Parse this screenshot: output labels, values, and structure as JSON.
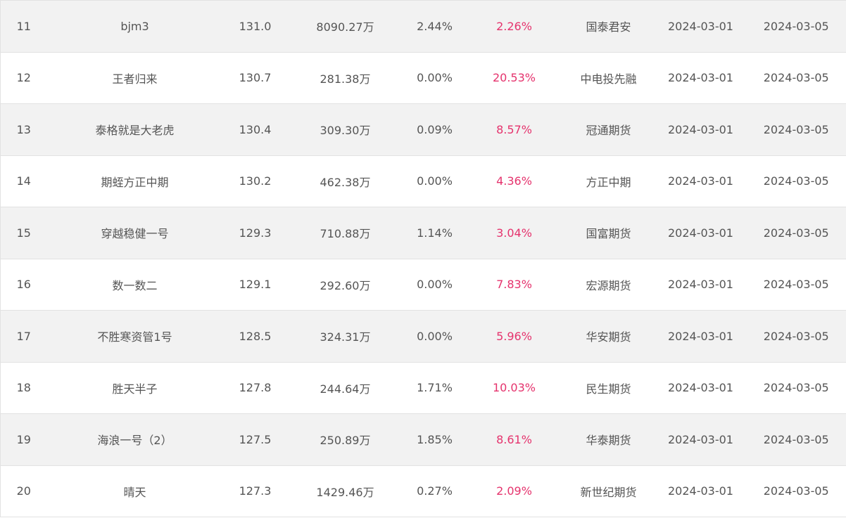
{
  "colors": {
    "row_odd_background": "#f2f2f2",
    "row_even_background": "#ffffff",
    "text": "#555555",
    "return_highlight": "#e5336d",
    "border": "#e2e2e2"
  },
  "rows": [
    {
      "rank": "11",
      "name": "bjm3",
      "score": "131.0",
      "scale": "8090.27万",
      "drawdown": "2.44%",
      "return": "2.26%",
      "broker": "国泰君安",
      "start_date": "2024-03-01",
      "end_date": "2024-03-05"
    },
    {
      "rank": "12",
      "name": "王者归来",
      "score": "130.7",
      "scale": "281.38万",
      "drawdown": "0.00%",
      "return": "20.53%",
      "broker": "中电投先融",
      "start_date": "2024-03-01",
      "end_date": "2024-03-05"
    },
    {
      "rank": "13",
      "name": "泰格就是大老虎",
      "score": "130.4",
      "scale": "309.30万",
      "drawdown": "0.09%",
      "return": "8.57%",
      "broker": "冠通期货",
      "start_date": "2024-03-01",
      "end_date": "2024-03-05"
    },
    {
      "rank": "14",
      "name": "期蛭方正中期",
      "score": "130.2",
      "scale": "462.38万",
      "drawdown": "0.00%",
      "return": "4.36%",
      "broker": "方正中期",
      "start_date": "2024-03-01",
      "end_date": "2024-03-05"
    },
    {
      "rank": "15",
      "name": "穿越稳健一号",
      "score": "129.3",
      "scale": "710.88万",
      "drawdown": "1.14%",
      "return": "3.04%",
      "broker": "国富期货",
      "start_date": "2024-03-01",
      "end_date": "2024-03-05"
    },
    {
      "rank": "16",
      "name": "数一数二",
      "score": "129.1",
      "scale": "292.60万",
      "drawdown": "0.00%",
      "return": "7.83%",
      "broker": "宏源期货",
      "start_date": "2024-03-01",
      "end_date": "2024-03-05"
    },
    {
      "rank": "17",
      "name": "不胜寒资管1号",
      "score": "128.5",
      "scale": "324.31万",
      "drawdown": "0.00%",
      "return": "5.96%",
      "broker": "华安期货",
      "start_date": "2024-03-01",
      "end_date": "2024-03-05"
    },
    {
      "rank": "18",
      "name": "胜天半子",
      "score": "127.8",
      "scale": "244.64万",
      "drawdown": "1.71%",
      "return": "10.03%",
      "broker": "民生期货",
      "start_date": "2024-03-01",
      "end_date": "2024-03-05"
    },
    {
      "rank": "19",
      "name": "海浪一号（2）",
      "score": "127.5",
      "scale": "250.89万",
      "drawdown": "1.85%",
      "return": "8.61%",
      "broker": "华泰期货",
      "start_date": "2024-03-01",
      "end_date": "2024-03-05"
    },
    {
      "rank": "20",
      "name": "晴天",
      "score": "127.3",
      "scale": "1429.46万",
      "drawdown": "0.27%",
      "return": "2.09%",
      "broker": "新世纪期货",
      "start_date": "2024-03-01",
      "end_date": "2024-03-05"
    }
  ]
}
